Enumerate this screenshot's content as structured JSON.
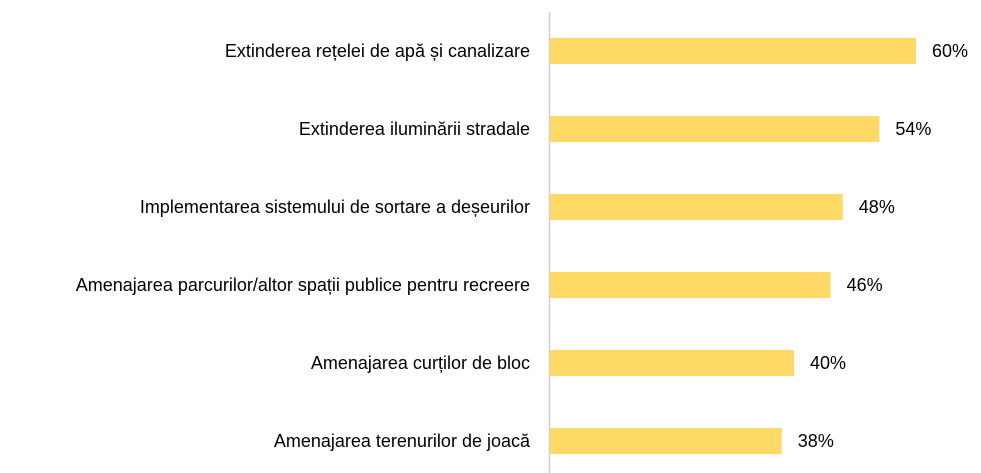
{
  "chart_data": {
    "type": "bar",
    "orientation": "horizontal",
    "categories": [
      "Extinderea rețelei de apă și canalizare",
      "Extinderea iluminării stradale",
      "Implementarea sistemului de sortare a deșeurilor",
      "Amenajarea parcurilor/altor spații publice pentru recreere",
      "Amenajarea curților de bloc",
      "Amenajarea terenurilor de joacă"
    ],
    "values": [
      60,
      54,
      48,
      46,
      40,
      38
    ],
    "value_labels": [
      "60%",
      "54%",
      "48%",
      "46%",
      "40%",
      "38%"
    ],
    "color": "#ffd966",
    "xlim": [
      0,
      70
    ]
  }
}
